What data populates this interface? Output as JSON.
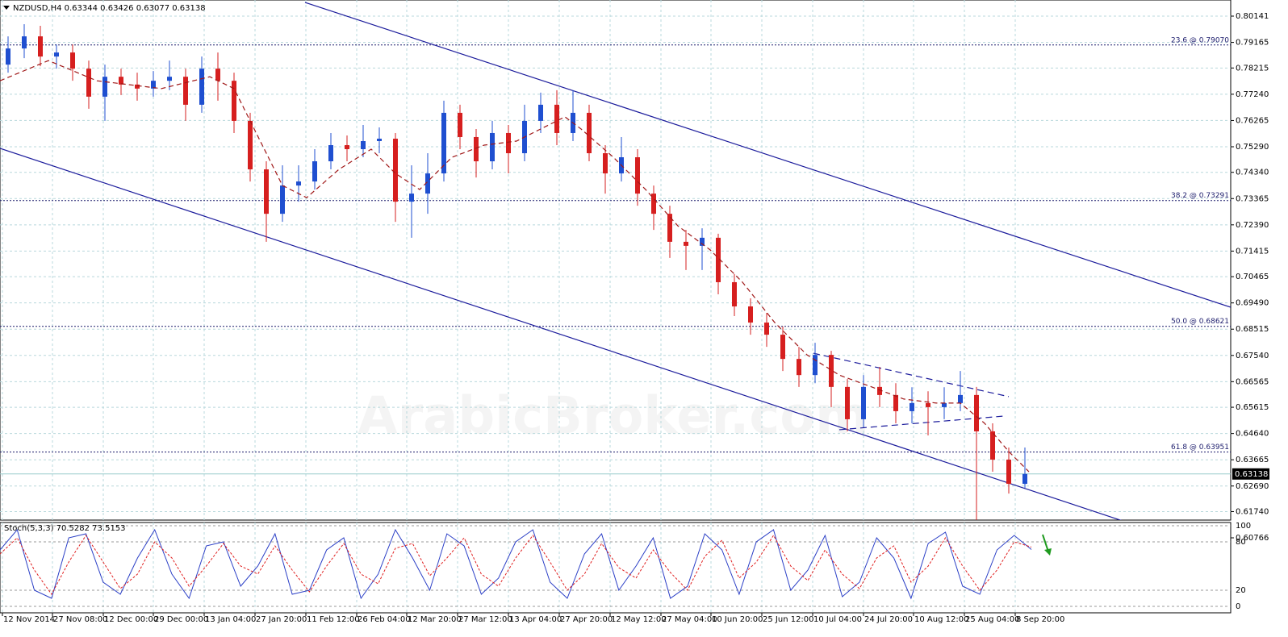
{
  "chart_data": {
    "type": "candlestick",
    "title": "NZDUSD,H4  0.63344 0.63426 0.63077 0.63138",
    "watermark": "ArabicBroker.com",
    "up_color": "#1f4fd0",
    "down_color": "#d61f1f",
    "grid": true,
    "xlim": [
      0,
      1525
    ],
    "ylim": [
      0.60766,
      0.8074
    ],
    "xticks": [
      {
        "value": 3,
        "label": "12 Nov 2014"
      },
      {
        "value": 65,
        "label": "27 Nov 08:00"
      },
      {
        "value": 128,
        "label": "12 Dec 00:00"
      },
      {
        "value": 190,
        "label": "29 Dec 00:00"
      },
      {
        "value": 253,
        "label": "13 Jan 04:00"
      },
      {
        "value": 316,
        "label": "27 Jan 20:00"
      },
      {
        "value": 379,
        "label": "11 Feb 12:00"
      },
      {
        "value": 442,
        "label": "26 Feb 04:00"
      },
      {
        "value": 504,
        "label": "12 Mar 20:00"
      },
      {
        "value": 567,
        "label": "27 Mar 12:00"
      },
      {
        "value": 630,
        "label": "13 Apr 04:00"
      },
      {
        "value": 693,
        "label": "27 Apr 20:00"
      },
      {
        "value": 756,
        "label": "12 May 12:00"
      },
      {
        "value": 819,
        "label": "27 May 04:00"
      },
      {
        "value": 881,
        "label": "10 Jun 20:00"
      },
      {
        "value": 944,
        "label": "25 Jun 12:00"
      },
      {
        "value": 1007,
        "label": "10 Jul 04:00"
      },
      {
        "value": 1070,
        "label": "24 Jul 20:00"
      },
      {
        "value": 1132,
        "label": "10 Aug 12:00"
      },
      {
        "value": 1195,
        "label": "25 Aug 04:00"
      },
      {
        "value": 1258,
        "label": "8 Sep 20:00"
      }
    ],
    "yticks": [
      0.80141,
      0.79165,
      0.78215,
      {
        "value": 0.7724,
        "label": "0.77240"
      },
      0.76265,
      {
        "value": 0.7529,
        "label": "0.75290"
      },
      {
        "value": 0.7434,
        "label": "0.74340"
      },
      0.73365,
      {
        "value": 0.7239,
        "label": "0.72390"
      },
      0.71415,
      0.70465,
      {
        "value": 0.6949,
        "label": "0.69490"
      },
      0.68515,
      {
        "value": 0.6754,
        "label": "0.67540"
      },
      0.66565,
      0.65615,
      {
        "value": 0.6464,
        "label": "0.64640"
      },
      0.63665,
      {
        "value": 0.6269,
        "label": "0.62690"
      },
      {
        "value": 0.6174,
        "label": "0.61740"
      },
      0.60766
    ],
    "open": [
      0.7834,
      0.7894,
      0.7939,
      0.7864,
      0.7879,
      0.7819,
      0.7715,
      0.7789,
      0.776,
      0.7745,
      0.7774,
      0.7789,
      0.7685,
      0.7819,
      0.7774,
      0.7625,
      0.7445,
      0.728,
      0.7385,
      0.74,
      0.7475,
      0.7535,
      0.752,
      0.755,
      0.7559,
      0.7325,
      0.7355,
      0.743,
      0.7655,
      0.7565,
      0.7475,
      0.758,
      0.7505,
      0.7625,
      0.7685,
      0.758,
      0.7655,
      0.7505,
      0.743,
      0.749,
      0.7355,
      0.728,
      0.7176,
      0.7161,
      0.7191,
      0.7026,
      0.6936,
      0.6876,
      0.6831,
      0.6741,
      0.6681,
      0.6756,
      0.6637,
      0.6517,
      0.6637,
      0.6607,
      0.6547,
      0.6577,
      0.6562,
      0.6577,
      0.6607,
      0.6472,
      0.6367,
      0.6277
    ],
    "high": [
      0.7939,
      0.7984,
      0.7978,
      0.7909,
      0.7909,
      0.7849,
      0.7834,
      0.7819,
      0.7804,
      0.781,
      0.7849,
      0.7819,
      0.7864,
      0.7879,
      0.7804,
      0.7655,
      0.7475,
      0.746,
      0.746,
      0.752,
      0.758,
      0.7571,
      0.761,
      0.7601,
      0.758,
      0.746,
      0.7505,
      0.77,
      0.7685,
      0.7595,
      0.7625,
      0.761,
      0.7685,
      0.773,
      0.7739,
      0.7739,
      0.7685,
      0.7535,
      0.7565,
      0.752,
      0.7385,
      0.731,
      0.722,
      0.7226,
      0.7206,
      0.7056,
      0.6966,
      0.6912,
      0.6861,
      0.6786,
      0.6801,
      0.6771,
      0.6666,
      0.6681,
      0.6711,
      0.6651,
      0.6636,
      0.6621,
      0.6636,
      0.6696,
      0.6637,
      0.6502,
      0.6412,
      0.6412
    ],
    "low": [
      0.7804,
      0.7858,
      0.7828,
      0.7819,
      0.7774,
      0.767,
      0.7625,
      0.7721,
      0.77,
      0.7715,
      0.7739,
      0.7625,
      0.7655,
      0.77,
      0.758,
      0.74,
      0.7176,
      0.725,
      0.7325,
      0.737,
      0.7445,
      0.7475,
      0.749,
      0.7505,
      0.725,
      0.7191,
      0.728,
      0.74,
      0.752,
      0.7415,
      0.7445,
      0.743,
      0.7475,
      0.758,
      0.7535,
      0.755,
      0.7475,
      0.7355,
      0.74,
      0.731,
      0.722,
      0.7116,
      0.7071,
      0.7071,
      0.6981,
      0.69,
      0.6831,
      0.6786,
      0.6696,
      0.6637,
      0.6651,
      0.6562,
      0.6472,
      0.6487,
      0.6562,
      0.6502,
      0.6502,
      0.6457,
      0.6517,
      0.6547,
      0.6107,
      0.6322,
      0.6241,
      0.6262
    ],
    "close": [
      0.7894,
      0.7939,
      0.7864,
      0.7879,
      0.7819,
      0.7715,
      0.7789,
      0.776,
      0.7745,
      0.7774,
      0.7789,
      0.7685,
      0.7819,
      0.7774,
      0.7625,
      0.7445,
      0.728,
      0.7385,
      0.74,
      0.7475,
      0.7535,
      0.752,
      0.755,
      0.7559,
      0.7325,
      0.7355,
      0.743,
      0.7655,
      0.7565,
      0.7475,
      0.758,
      0.7505,
      0.7625,
      0.7685,
      0.758,
      0.7655,
      0.7505,
      0.743,
      0.749,
      0.7355,
      0.728,
      0.7176,
      0.7161,
      0.7191,
      0.7026,
      0.6936,
      0.6876,
      0.6831,
      0.6741,
      0.6681,
      0.6756,
      0.6637,
      0.6517,
      0.6637,
      0.6607,
      0.6547,
      0.6577,
      0.6562,
      0.6577,
      0.6607,
      0.6472,
      0.6367,
      0.6277,
      0.63138
    ],
    "ma": {
      "color": "#a01818",
      "x": [
        0,
        60,
        120,
        200,
        260,
        290,
        320,
        350,
        380,
        420,
        460,
        490,
        520,
        560,
        600,
        640,
        680,
        700,
        720,
        760,
        800,
        840,
        880,
        920,
        960,
        1000,
        1040,
        1080,
        1120,
        1160,
        1190,
        1220,
        1250,
        1275
      ],
      "values": [
        0.7774,
        0.7849,
        0.7774,
        0.7745,
        0.7789,
        0.7745,
        0.7565,
        0.7385,
        0.734,
        0.7445,
        0.752,
        0.743,
        0.737,
        0.749,
        0.7535,
        0.755,
        0.761,
        0.764,
        0.7595,
        0.749,
        0.737,
        0.7235,
        0.7146,
        0.7026,
        0.6876,
        0.6756,
        0.6681,
        0.6637,
        0.6592,
        0.6577,
        0.6577,
        0.6502,
        0.6397,
        0.6322
      ]
    },
    "trendlines": [
      {
        "color": "#1c1c9c",
        "style": "solid",
        "x": [
          378,
          1525
        ],
        "values": [
          0.8065,
          0.6933
        ]
      },
      {
        "color": "#1c1c9c",
        "style": "solid",
        "x": [
          0,
          1470
        ],
        "values": [
          0.7523,
          0.6061
        ]
      },
      {
        "color": "#1c1c9c",
        "style": "dashed",
        "x": [
          1008,
          1250
        ],
        "values": [
          0.6762,
          0.6601
        ]
      },
      {
        "color": "#1c1c9c",
        "style": "dashed",
        "x": [
          1040,
          1245
        ],
        "values": [
          0.6478,
          0.6529
        ]
      }
    ],
    "levels": [
      {
        "value": 0.7907,
        "label": "23.6 @ 0.79070"
      },
      {
        "value": 0.73291,
        "label": "38.2 @ 0.73291"
      },
      {
        "value": 0.68621,
        "label": "50.0 @ 0.68621"
      },
      {
        "value": 0.63951,
        "label": "61.8 @ 0.63951"
      }
    ],
    "last": {
      "value": 0.63138,
      "label": "0.63138"
    },
    "indicator": {
      "title": "Stoch(5,3,3) 70.5282 73.5153",
      "ylim": [
        -8,
        104
      ],
      "yticks": [
        0,
        20,
        80,
        100
      ],
      "series": [
        {
          "color": "#2b3fc6",
          "values": [
            70,
            95,
            20,
            10,
            85,
            90,
            30,
            15,
            60,
            95,
            40,
            10,
            75,
            80,
            25,
            50,
            90,
            15,
            20,
            70,
            85,
            10,
            40,
            95,
            60,
            20,
            90,
            75,
            15,
            35,
            80,
            95,
            30,
            10,
            65,
            90,
            20,
            50,
            85,
            10,
            25,
            90,
            70,
            15,
            80,
            95,
            20,
            45,
            88,
            12,
            30,
            85,
            60,
            10,
            78,
            92,
            25,
            15,
            70,
            88,
            70.5282
          ]
        },
        {
          "color": "#e02020",
          "values": [
            65,
            85,
            45,
            15,
            55,
            88,
            55,
            22,
            40,
            80,
            60,
            25,
            50,
            78,
            50,
            40,
            75,
            45,
            18,
            50,
            78,
            40,
            28,
            72,
            78,
            38,
            60,
            85,
            40,
            25,
            60,
            88,
            55,
            20,
            40,
            78,
            48,
            35,
            70,
            42,
            20,
            62,
            82,
            35,
            55,
            88,
            50,
            32,
            70,
            40,
            22,
            60,
            75,
            30,
            50,
            85,
            50,
            20,
            45,
            80,
            73.5153
          ]
        }
      ]
    }
  }
}
